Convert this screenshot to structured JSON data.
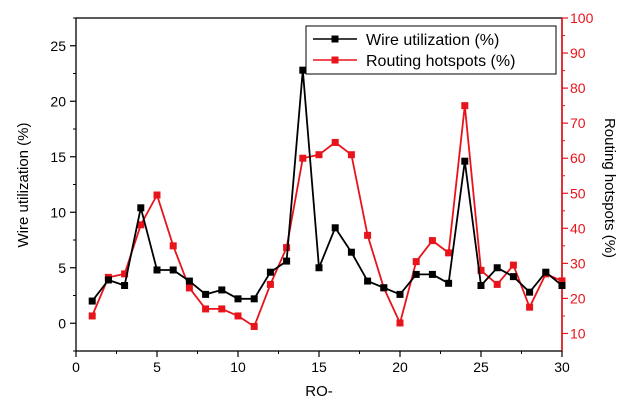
{
  "chart_data": {
    "type": "line",
    "xlabel": "RO-",
    "ylabel_left": "Wire utilization (%)",
    "ylabel_right": "Routing hotspots (%)",
    "xlim": [
      0,
      30
    ],
    "ylim_left": [
      -2.5,
      27.5
    ],
    "ylim_right": [
      5,
      100
    ],
    "x_ticks": [
      0,
      5,
      10,
      15,
      20,
      25,
      30
    ],
    "y_ticks_left": [
      0,
      5,
      10,
      15,
      20,
      25
    ],
    "y_ticks_right": [
      10,
      20,
      30,
      40,
      50,
      60,
      70,
      80,
      90,
      100
    ],
    "grid": false,
    "legend_position": "top-right",
    "colors": {
      "left_axis": "#000000",
      "right_axis": "#e8141b"
    },
    "x": [
      1,
      2,
      3,
      4,
      5,
      6,
      7,
      8,
      9,
      10,
      11,
      12,
      13,
      14,
      15,
      16,
      17,
      18,
      19,
      20,
      21,
      22,
      23,
      24,
      25,
      26,
      27,
      28,
      29,
      30
    ],
    "series": [
      {
        "name": "Wire utilization (%)",
        "axis": "left",
        "color": "#000000",
        "values": [
          2.0,
          3.9,
          3.4,
          10.4,
          4.8,
          4.8,
          3.8,
          2.6,
          3.0,
          2.2,
          2.2,
          4.6,
          5.6,
          22.8,
          5.0,
          8.6,
          6.4,
          3.8,
          3.2,
          2.6,
          4.4,
          4.4,
          3.6,
          14.6,
          3.4,
          5.0,
          4.2,
          2.8,
          4.6,
          3.4
        ]
      },
      {
        "name": "Routing hotspots (%)",
        "axis": "right",
        "color": "#e8141b",
        "values": [
          15,
          26,
          27,
          41,
          49.5,
          35,
          23,
          17,
          17,
          15,
          12,
          24,
          34.5,
          60,
          61,
          64.5,
          61,
          38,
          23,
          13,
          30.5,
          36.5,
          33,
          75,
          28,
          24,
          29.5,
          17.5,
          27,
          25
        ]
      }
    ]
  }
}
